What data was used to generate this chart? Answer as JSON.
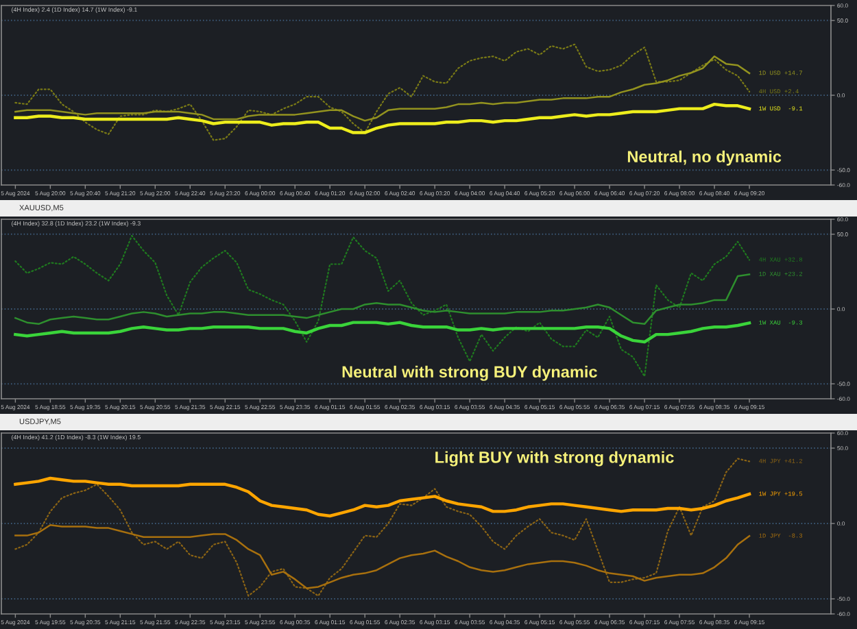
{
  "chart_data": [
    {
      "type": "line",
      "subtitle": "(4H Index) 2.4 (1D Index) 14.7 (1W Index) -9.1",
      "categories": [
        "5 Aug 2024",
        null,
        null,
        "5 Aug 20:00",
        null,
        null,
        "5 Aug 20:40",
        null,
        null,
        "5 Aug 21:20",
        null,
        null,
        "5 Aug 22:00",
        null,
        null,
        "5 Aug 22:40",
        null,
        null,
        "5 Aug 23:20",
        null,
        null,
        "6 Aug 00:00",
        null,
        null,
        "6 Aug 00:40",
        null,
        null,
        "6 Aug 01:20",
        null,
        null,
        "6 Aug 02:00",
        null,
        null,
        "6 Aug 02:40",
        null,
        null,
        "6 Aug 03:20",
        null,
        null,
        "6 Aug 04:00",
        null,
        null,
        "6 Aug 04:40",
        null,
        null,
        "6 Aug 05:20",
        null,
        null,
        "6 Aug 06:00",
        null,
        null,
        "6 Aug 06:40",
        null,
        null,
        "6 Aug 07:20",
        null,
        null,
        "6 Aug 08:00",
        null,
        null,
        "6 Aug 08:40",
        null,
        null,
        "6 Aug 09:20"
      ],
      "series": [
        {
          "name": "4H USD +2.4",
          "color": "#7a7a16",
          "line_style": "dotted",
          "values": [
            -5,
            -6,
            4,
            4,
            -6,
            -11,
            -18,
            -23,
            -26,
            -14,
            -13,
            -13,
            -10,
            -11,
            -9,
            -6,
            -17,
            -30,
            -29,
            -21,
            -10,
            -11,
            -13,
            -9,
            -6,
            -1,
            -1,
            -8,
            -11,
            -19,
            -25,
            -11,
            1,
            5,
            -1,
            13,
            9,
            8,
            18,
            23,
            25,
            26,
            23,
            29,
            31,
            27,
            33,
            31,
            34,
            19,
            16,
            17,
            20,
            27,
            32,
            9,
            9,
            10,
            15,
            20,
            24,
            17,
            13,
            2.4
          ]
        },
        {
          "name": "1D USD +14.7",
          "color": "#93931f",
          "line_style": "solid",
          "values": [
            -11,
            -10,
            -10,
            -10,
            -11,
            -12,
            -13,
            -12,
            -12,
            -12,
            -12,
            -12,
            -11,
            -11,
            -11,
            -12,
            -13,
            -16,
            -16,
            -16,
            -14,
            -13,
            -13,
            -13,
            -13,
            -12,
            -11,
            -10,
            -10,
            -14,
            -17,
            -15,
            -10,
            -9,
            -9,
            -9,
            -9,
            -8,
            -6,
            -6,
            -5,
            -6,
            -5,
            -5,
            -4,
            -3,
            -3,
            -2,
            -2,
            -2,
            -1,
            -1,
            2,
            4,
            7,
            8,
            10,
            13,
            15,
            18,
            26,
            21,
            20,
            14.7
          ]
        },
        {
          "name": "1W USD  -9.1",
          "color": "#eded1c",
          "line_style": "solid",
          "values": [
            -15,
            -15,
            -14,
            -14,
            -15,
            -15,
            -16,
            -16,
            -16,
            -16,
            -16,
            -16,
            -16,
            -16,
            -15,
            -16,
            -17,
            -19,
            -18,
            -18,
            -18,
            -18,
            -20,
            -19,
            -19,
            -18,
            -18,
            -22,
            -22,
            -25,
            -25,
            -22,
            -20,
            -19,
            -19,
            -19,
            -19,
            -18,
            -18,
            -17,
            -17,
            -18,
            -17,
            -17,
            -16,
            -15,
            -15,
            -14,
            -13,
            -14,
            -13,
            -13,
            -12,
            -11,
            -11,
            -11,
            -10,
            -9,
            -9,
            -9,
            -6,
            -7,
            -7,
            -9.1
          ]
        }
      ],
      "ylim": [
        -60,
        60
      ],
      "yticks": [
        {
          "value": -60,
          "label": "-60.0"
        },
        {
          "value": -50,
          "label": "-50.0"
        },
        {
          "value": 0,
          "label": "0.0"
        },
        {
          "value": 50,
          "label": "50.0"
        },
        {
          "value": 60,
          "label": "60.0"
        }
      ],
      "ref_lines": [
        {
          "axis": "y",
          "value": 50,
          "color": "#3c5a78",
          "line_style": "dotted"
        },
        {
          "axis": "y",
          "value": 0,
          "color": "#3c5a78",
          "line_style": "dotted"
        },
        {
          "axis": "y",
          "value": -50,
          "color": "#3c5a78",
          "line_style": "dotted"
        }
      ],
      "annotations": [
        "Neutral, no dynamic"
      ]
    },
    {
      "type": "line",
      "title": "XAUUSD,M5",
      "subtitle": "(4H Index) 32.8 (1D Index) 23.2 (1W Index) -9.3",
      "categories": [
        "5 Aug 2024",
        null,
        null,
        "5 Aug 18:55",
        null,
        null,
        "5 Aug 19:35",
        null,
        null,
        "5 Aug 20:15",
        null,
        null,
        "5 Aug 20:55",
        null,
        null,
        "5 Aug 21:35",
        null,
        null,
        "5 Aug 22:15",
        null,
        null,
        "5 Aug 22:55",
        null,
        null,
        "5 Aug 23:35",
        null,
        null,
        "6 Aug 01:15",
        null,
        null,
        "6 Aug 01:55",
        null,
        null,
        "6 Aug 02:35",
        null,
        null,
        "6 Aug 03:15",
        null,
        null,
        "6 Aug 03:55",
        null,
        null,
        "6 Aug 04:35",
        null,
        null,
        "6 Aug 05:15",
        null,
        null,
        "6 Aug 05:55",
        null,
        null,
        "6 Aug 06:35",
        null,
        null,
        "6 Aug 07:15",
        null,
        null,
        "6 Aug 07:55",
        null,
        null,
        "6 Aug 08:35",
        null,
        null,
        "6 Aug 09:15"
      ],
      "series": [
        {
          "name": "4H XAU +32.8",
          "color": "#1f7a1f",
          "line_style": "dotted",
          "values": [
            32,
            24,
            27,
            31,
            30,
            35,
            30,
            24,
            19,
            30,
            49,
            39,
            31,
            9,
            -4,
            18,
            28,
            34,
            39,
            31,
            13,
            10,
            6,
            3,
            -8,
            -22,
            -8,
            30,
            30,
            48,
            39,
            34,
            12,
            19,
            4,
            -4,
            -1,
            3,
            -19,
            -35,
            -17,
            -28,
            -19,
            -12,
            -15,
            -9,
            -20,
            -25,
            -25,
            -14,
            -19,
            -5,
            -27,
            -32,
            -45,
            16,
            6,
            1,
            24,
            19,
            30,
            35,
            45,
            32.8
          ]
        },
        {
          "name": "1D XAU +23.2",
          "color": "#2e8f2e",
          "line_style": "solid",
          "values": [
            -6,
            -9,
            -10,
            -7,
            -6,
            -5,
            -6,
            -7,
            -7,
            -5,
            -3,
            -2,
            -3,
            -5,
            -4,
            -3,
            -3,
            -2,
            -2,
            -3,
            -4,
            -4,
            -4,
            -4,
            -5,
            -6,
            -4,
            -2,
            0,
            0,
            3,
            4,
            3,
            3,
            1,
            -1,
            -2,
            -1,
            -2,
            -3,
            -3,
            -3,
            -3,
            -2,
            -2,
            -2,
            -1,
            -1,
            0,
            1,
            3,
            1,
            -4,
            -9,
            -10,
            -1,
            1,
            3,
            3,
            4,
            6,
            6,
            22,
            23.2
          ]
        },
        {
          "name": "1W XAU  -9.3",
          "color": "#3ad43a",
          "line_style": "solid",
          "values": [
            -17,
            -18,
            -17,
            -16,
            -15,
            -16,
            -16,
            -16,
            -16,
            -15,
            -13,
            -12,
            -13,
            -14,
            -14,
            -13,
            -13,
            -12,
            -12,
            -12,
            -12,
            -13,
            -13,
            -13,
            -15,
            -16,
            -13,
            -11,
            -11,
            -9,
            -9,
            -9,
            -10,
            -9,
            -11,
            -12,
            -12,
            -12,
            -14,
            -14,
            -13,
            -14,
            -13,
            -13,
            -13,
            -13,
            -13,
            -13,
            -13,
            -12,
            -12,
            -13,
            -18,
            -21,
            -22,
            -17,
            -17,
            -16,
            -15,
            -13,
            -12,
            -12,
            -11,
            -9.3
          ]
        }
      ],
      "ylim": [
        -60,
        60
      ],
      "yticks": [
        {
          "value": -60,
          "label": "-60.0"
        },
        {
          "value": -50,
          "label": "-50.0"
        },
        {
          "value": 0,
          "label": "0.0"
        },
        {
          "value": 50,
          "label": "50.0"
        },
        {
          "value": 60,
          "label": "60.0"
        }
      ],
      "ref_lines": [
        {
          "axis": "y",
          "value": 50,
          "color": "#3c5a78",
          "line_style": "dotted"
        },
        {
          "axis": "y",
          "value": 0,
          "color": "#3c5a78",
          "line_style": "dotted"
        },
        {
          "axis": "y",
          "value": -50,
          "color": "#3c5a78",
          "line_style": "dotted"
        }
      ],
      "annotations": [
        "Neutral with strong BUY dynamic"
      ]
    },
    {
      "type": "line",
      "title": "USDJPY,M5",
      "subtitle": "(4H Index) 41.2 (1D Index) -8.3 (1W Index) 19.5",
      "categories": [
        "5 Aug 2024",
        null,
        null,
        "5 Aug 19:55",
        null,
        null,
        "5 Aug 20:35",
        null,
        null,
        "5 Aug 21:15",
        null,
        null,
        "5 Aug 21:55",
        null,
        null,
        "5 Aug 22:35",
        null,
        null,
        "5 Aug 23:15",
        null,
        null,
        "5 Aug 23:55",
        null,
        null,
        "6 Aug 00:35",
        null,
        null,
        "6 Aug 01:15",
        null,
        null,
        "6 Aug 01:55",
        null,
        null,
        "6 Aug 02:35",
        null,
        null,
        "6 Aug 03:15",
        null,
        null,
        "6 Aug 03:55",
        null,
        null,
        "6 Aug 04:35",
        null,
        null,
        "6 Aug 05:15",
        null,
        null,
        "6 Aug 05:55",
        null,
        null,
        "6 Aug 06:35",
        null,
        null,
        "6 Aug 07:15",
        null,
        null,
        "6 Aug 07:55",
        null,
        null,
        "6 Aug 08:35",
        null,
        null,
        "6 Aug 09:15"
      ],
      "series": [
        {
          "name": "4H JPY +41.2",
          "color": "#8c6414",
          "line_style": "dotted",
          "values": [
            -17,
            -14,
            -6,
            8,
            17,
            20,
            22,
            26,
            18,
            9,
            -6,
            -14,
            -12,
            -17,
            -12,
            -21,
            -23,
            -14,
            -12,
            -26,
            -48,
            -42,
            -32,
            -30,
            -42,
            -43,
            -48,
            -36,
            -30,
            -19,
            -8,
            -9,
            0,
            13,
            12,
            17,
            23,
            11,
            8,
            6,
            -2,
            -12,
            -17,
            -8,
            -2,
            3,
            -6,
            -8,
            -11,
            3,
            -18,
            -39,
            -39,
            -37,
            -36,
            -33,
            -5,
            11,
            -8,
            11,
            15,
            34,
            43,
            41.2
          ]
        },
        {
          "name": "1D JPY  -8.3",
          "color": "#a8700e",
          "line_style": "solid",
          "values": [
            -8,
            -8,
            -6,
            -1,
            -2,
            -2,
            -2,
            -3,
            -3,
            -5,
            -7,
            -9,
            -9,
            -9,
            -9,
            -9,
            -8,
            -7,
            -7,
            -11,
            -17,
            -21,
            -34,
            -32,
            -37,
            -43,
            -42,
            -39,
            -36,
            -34,
            -33,
            -31,
            -27,
            -23,
            -21,
            -20,
            -18,
            -22,
            -25,
            -29,
            -31,
            -32,
            -31,
            -29,
            -27,
            -26,
            -25,
            -25,
            -26,
            -28,
            -31,
            -33,
            -34,
            -35,
            -38,
            -36,
            -35,
            -34,
            -34,
            -33,
            -29,
            -23,
            -14,
            -8.3
          ]
        },
        {
          "name": "1W JPY +19.5",
          "color": "#ffa500",
          "line_style": "solid",
          "values": [
            26,
            27,
            28,
            30,
            29,
            28,
            28,
            27,
            26,
            26,
            25,
            25,
            25,
            25,
            25,
            26,
            26,
            26,
            26,
            24,
            21,
            15,
            12,
            11,
            10,
            9,
            6,
            5,
            7,
            9,
            12,
            11,
            12,
            15,
            16,
            17,
            18,
            15,
            13,
            12,
            11,
            8,
            8,
            9,
            11,
            12,
            13,
            13,
            12,
            11,
            10,
            9,
            8,
            9,
            9,
            9,
            10,
            10,
            9,
            10,
            12,
            15,
            17,
            19.5
          ]
        }
      ],
      "ylim": [
        -60,
        60
      ],
      "yticks": [
        {
          "value": -60,
          "label": "-60.0"
        },
        {
          "value": -50,
          "label": "-50.0"
        },
        {
          "value": 0,
          "label": "0.0"
        },
        {
          "value": 50,
          "label": "50.0"
        },
        {
          "value": 60,
          "label": "60.0"
        }
      ],
      "ref_lines": [
        {
          "axis": "y",
          "value": 50,
          "color": "#3c5a78",
          "line_style": "dotted"
        },
        {
          "axis": "y",
          "value": 0,
          "color": "#3c5a78",
          "line_style": "dotted"
        },
        {
          "axis": "y",
          "value": -50,
          "color": "#3c5a78",
          "line_style": "dotted"
        }
      ],
      "annotations": [
        "Light BUY with strong dynamic"
      ]
    }
  ]
}
